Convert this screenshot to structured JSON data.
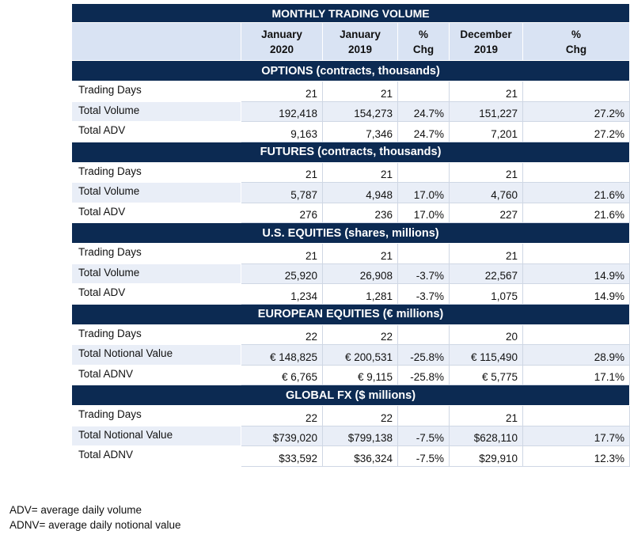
{
  "table": {
    "title": "MONTHLY TRADING VOLUME",
    "columns": [
      {
        "line1": "January",
        "line2": "2020"
      },
      {
        "line1": "January",
        "line2": "2019"
      },
      {
        "line1": "%",
        "line2": "Chg"
      },
      {
        "line1": "December",
        "line2": "2019"
      },
      {
        "line1": "%",
        "line2": "Chg"
      }
    ],
    "sections": [
      {
        "title": "OPTIONS (contracts, thousands)",
        "rows": [
          {
            "label": "Trading Days",
            "values": [
              "21",
              "21",
              "",
              "21",
              ""
            ]
          },
          {
            "label": "Total Volume",
            "values": [
              "192,418",
              "154,273",
              "24.7%",
              "151,227",
              "27.2%"
            ]
          },
          {
            "label": "Total ADV",
            "values": [
              "9,163",
              "7,346",
              "24.7%",
              "7,201",
              "27.2%"
            ]
          }
        ]
      },
      {
        "title": "FUTURES (contracts, thousands)",
        "rows": [
          {
            "label": "Trading Days",
            "values": [
              "21",
              "21",
              "",
              "21",
              ""
            ]
          },
          {
            "label": "Total Volume",
            "values": [
              "5,787",
              "4,948",
              "17.0%",
              "4,760",
              "21.6%"
            ]
          },
          {
            "label": "Total ADV",
            "values": [
              "276",
              "236",
              "17.0%",
              "227",
              "21.6%"
            ]
          }
        ]
      },
      {
        "title": "U.S. EQUITIES (shares, millions)",
        "rows": [
          {
            "label": "Trading Days",
            "values": [
              "21",
              "21",
              "",
              "21",
              ""
            ]
          },
          {
            "label": "Total Volume",
            "values": [
              "25,920",
              "26,908",
              "-3.7%",
              "22,567",
              "14.9%"
            ]
          },
          {
            "label": "Total ADV",
            "values": [
              "1,234",
              "1,281",
              "-3.7%",
              "1,075",
              "14.9%"
            ]
          }
        ]
      },
      {
        "title": "EUROPEAN EQUITIES (€ millions)",
        "rows": [
          {
            "label": "Trading Days",
            "values": [
              "22",
              "22",
              "",
              "20",
              ""
            ]
          },
          {
            "label": "Total Notional Value",
            "values": [
              "€ 148,825",
              "€ 200,531",
              "-25.8%",
              "€ 115,490",
              "28.9%"
            ]
          },
          {
            "label": "Total ADNV",
            "values": [
              "€ 6,765",
              "€ 9,115",
              "-25.8%",
              "€ 5,775",
              "17.1%"
            ]
          }
        ]
      },
      {
        "title": "GLOBAL FX ($ millions)",
        "rows": [
          {
            "label": "Trading Days",
            "values": [
              "22",
              "22",
              "",
              "21",
              ""
            ]
          },
          {
            "label": "Total Notional Value",
            "values": [
              "$739,020",
              "$799,138",
              "-7.5%",
              "$628,110",
              "17.7%"
            ]
          },
          {
            "label": "Total ADNV",
            "values": [
              "$33,592",
              "$36,324",
              "-7.5%",
              "$29,910",
              "12.3%"
            ]
          }
        ]
      }
    ]
  },
  "footnotes": [
    "ADV= average daily volume",
    "ADNV= average daily notional value"
  ],
  "colors": {
    "header_navy": "#0c2a52",
    "subheader_blue": "#d9e3f3",
    "alt_row": "#e9eef7"
  }
}
